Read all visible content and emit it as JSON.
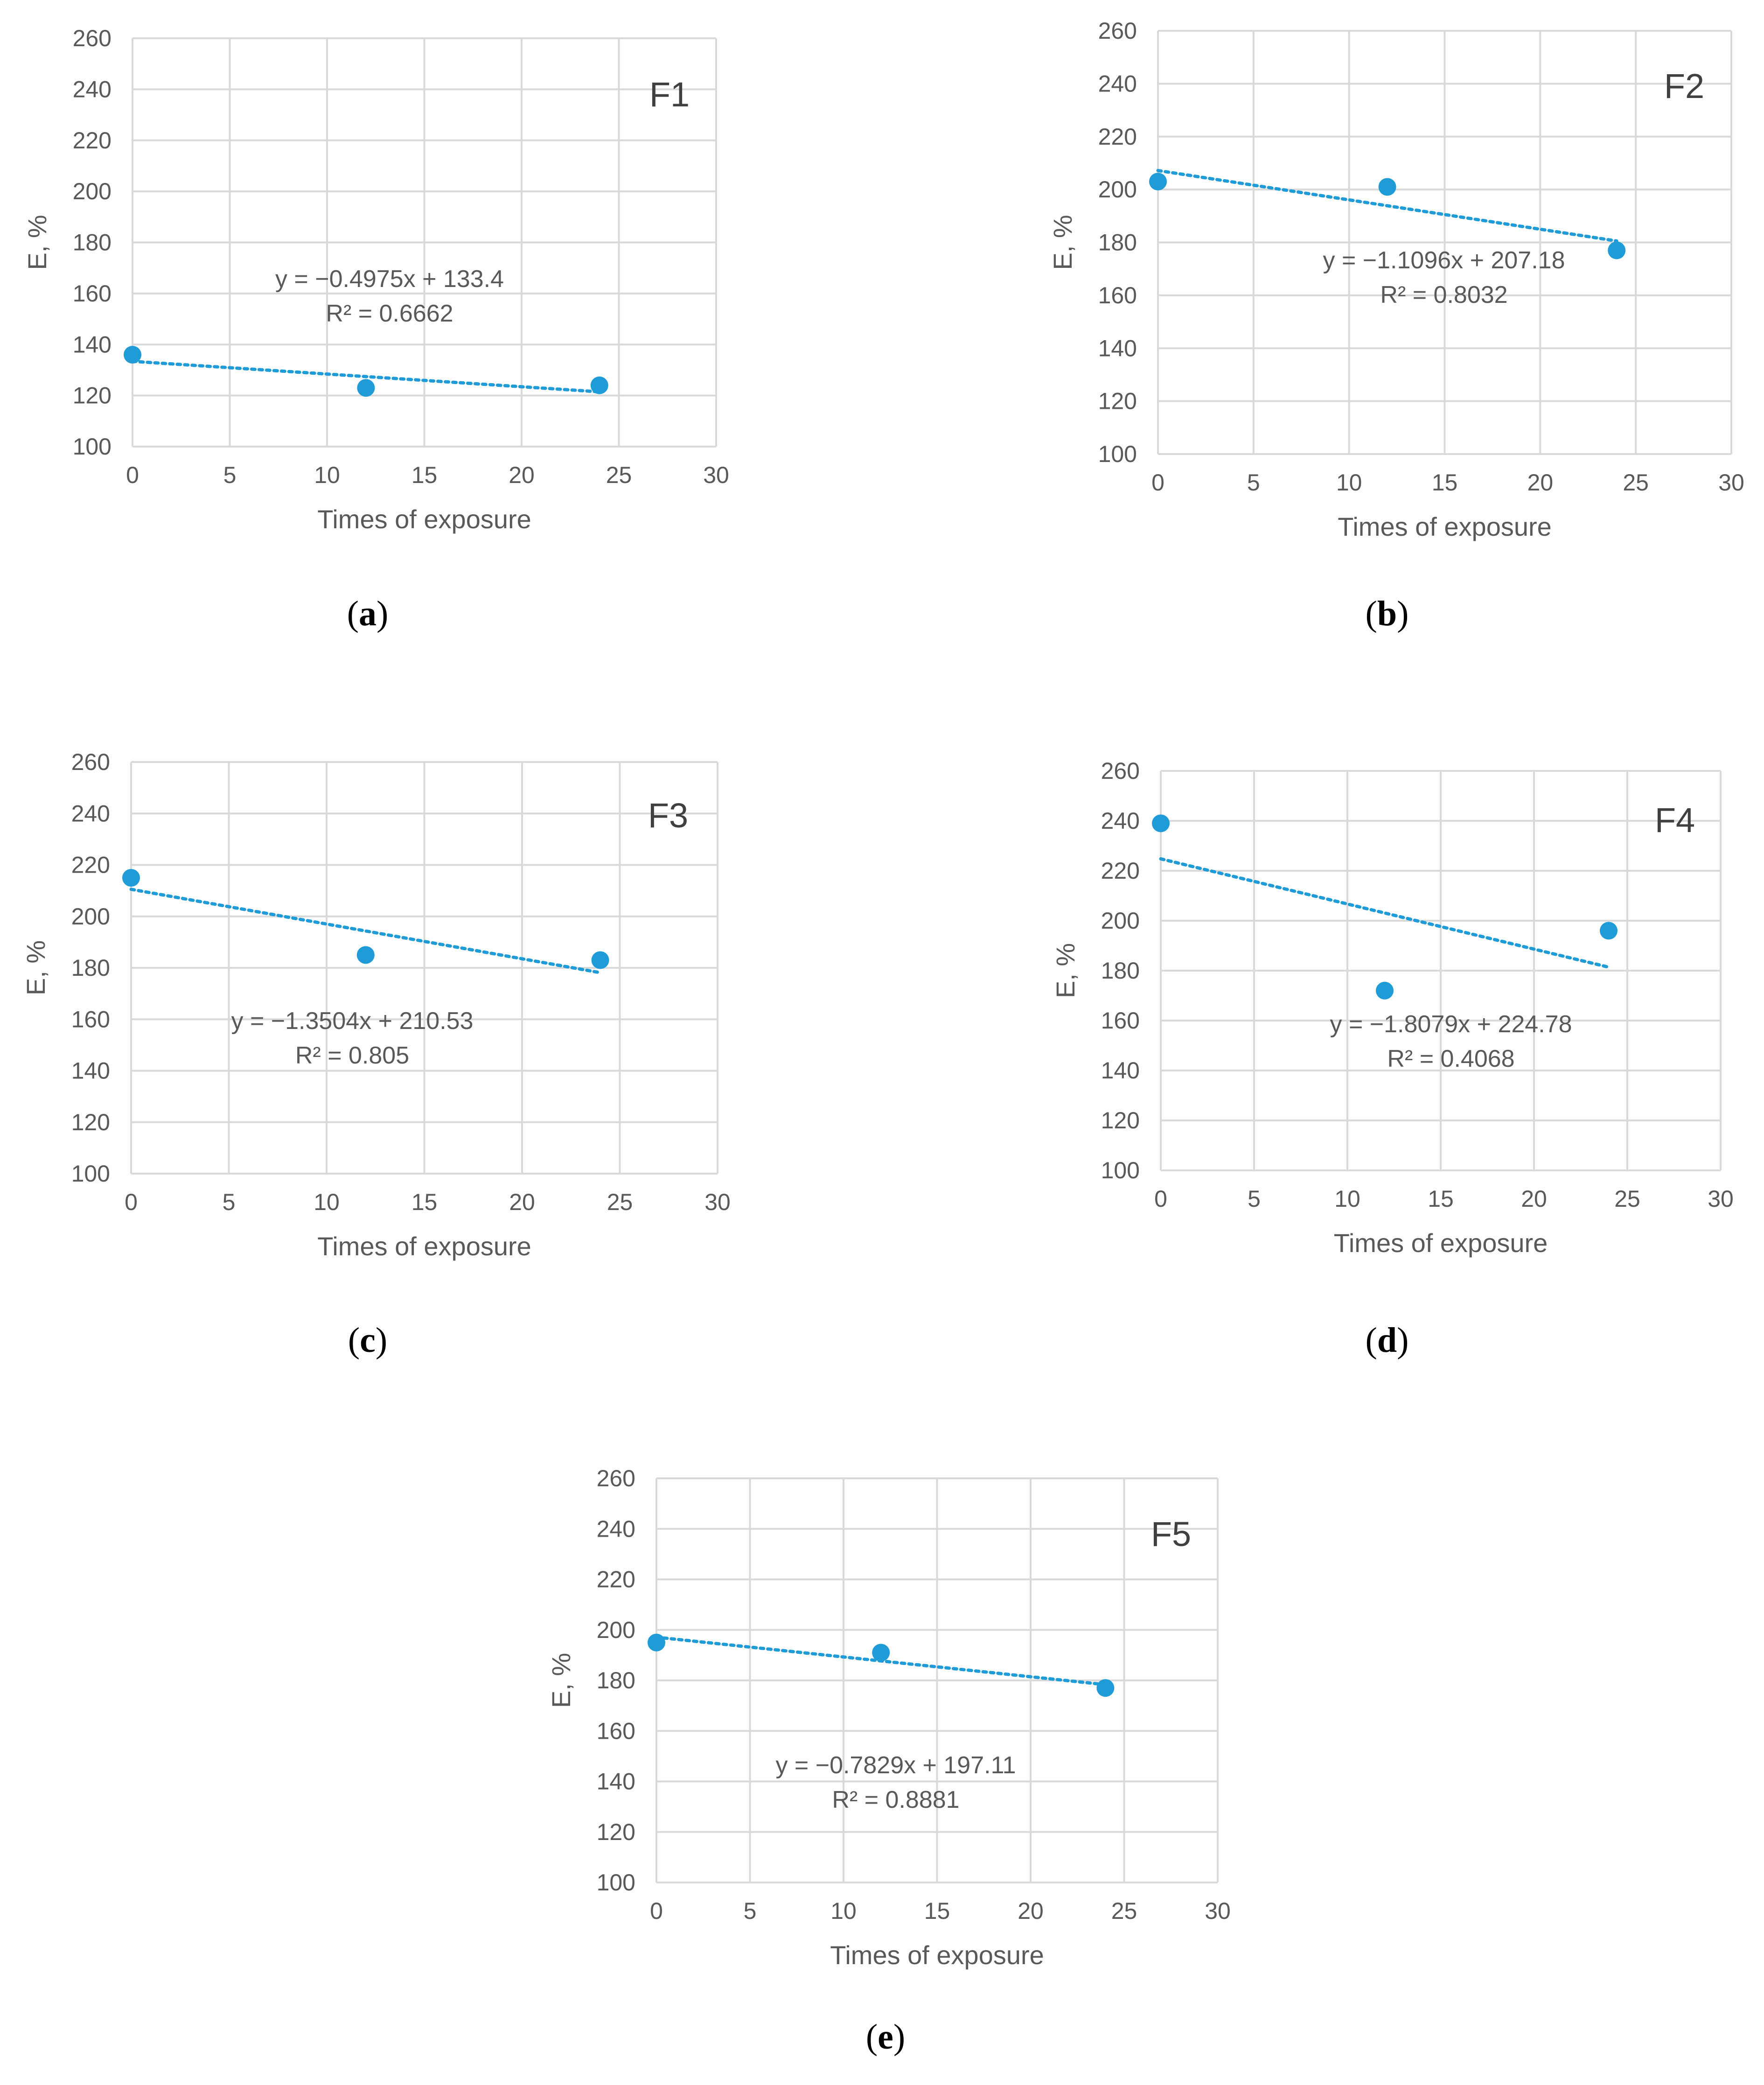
{
  "chart_data": [
    {
      "type": "scatter",
      "caption_letter": "a",
      "series_label": "F1",
      "xlabel": "Times of exposure",
      "ylabel": "E, %",
      "xlim": [
        0,
        30
      ],
      "ylim": [
        100,
        260
      ],
      "x_ticks": [
        0,
        5,
        10,
        15,
        20,
        25,
        30
      ],
      "y_ticks": [
        100,
        120,
        140,
        160,
        180,
        200,
        220,
        240,
        260
      ],
      "x": [
        0,
        12,
        24
      ],
      "y": [
        136,
        123,
        124
      ],
      "trendline": {
        "slope": -0.4975,
        "intercept": 133.4,
        "x_range": [
          0,
          24
        ]
      },
      "equation": "y = −0.4975x + 133.4",
      "r_squared": "R² = 0.6662"
    },
    {
      "type": "scatter",
      "caption_letter": "b",
      "series_label": "F2",
      "xlabel": "Times of exposure",
      "ylabel": "E, %",
      "xlim": [
        0,
        30
      ],
      "ylim": [
        100,
        260
      ],
      "x_ticks": [
        0,
        5,
        10,
        15,
        20,
        25,
        30
      ],
      "y_ticks": [
        100,
        120,
        140,
        160,
        180,
        200,
        220,
        240,
        260
      ],
      "x": [
        0,
        12,
        24
      ],
      "y": [
        203,
        201,
        177
      ],
      "trendline": {
        "slope": -1.1096,
        "intercept": 207.18,
        "x_range": [
          0,
          24
        ]
      },
      "equation": "y = −1.1096x + 207.18",
      "r_squared": "R² = 0.8032"
    },
    {
      "type": "scatter",
      "caption_letter": "c",
      "series_label": "F3",
      "xlabel": "Times of exposure",
      "ylabel": "E, %",
      "xlim": [
        0,
        30
      ],
      "ylim": [
        100,
        260
      ],
      "x_ticks": [
        0,
        5,
        10,
        15,
        20,
        25,
        30
      ],
      "y_ticks": [
        100,
        120,
        140,
        160,
        180,
        200,
        220,
        240,
        260
      ],
      "x": [
        0,
        12,
        24
      ],
      "y": [
        215,
        185,
        183
      ],
      "trendline": {
        "slope": -1.3504,
        "intercept": 210.53,
        "x_range": [
          0,
          24
        ]
      },
      "equation": "y = −1.3504x + 210.53",
      "r_squared": "R² = 0.805"
    },
    {
      "type": "scatter",
      "caption_letter": "d",
      "series_label": "F4",
      "xlabel": "Times of exposure",
      "ylabel": "E, %",
      "xlim": [
        0,
        30
      ],
      "ylim": [
        100,
        260
      ],
      "x_ticks": [
        0,
        5,
        10,
        15,
        20,
        25,
        30
      ],
      "y_ticks": [
        100,
        120,
        140,
        160,
        180,
        200,
        220,
        240,
        260
      ],
      "x": [
        0,
        12,
        24
      ],
      "y": [
        239,
        172,
        196
      ],
      "trendline": {
        "slope": -1.8079,
        "intercept": 224.78,
        "x_range": [
          0,
          24
        ]
      },
      "equation": "y = −1.8079x + 224.78",
      "r_squared": "R² = 0.4068"
    },
    {
      "type": "scatter",
      "caption_letter": "e",
      "series_label": "F5",
      "xlabel": "Times of exposure",
      "ylabel": "E, %",
      "xlim": [
        0,
        30
      ],
      "ylim": [
        100,
        260
      ],
      "x_ticks": [
        0,
        5,
        10,
        15,
        20,
        25,
        30
      ],
      "y_ticks": [
        100,
        120,
        140,
        160,
        180,
        200,
        220,
        240,
        260
      ],
      "x": [
        0,
        12,
        24
      ],
      "y": [
        195,
        191,
        177
      ],
      "trendline": {
        "slope": -0.7829,
        "intercept": 197.11,
        "x_range": [
          0,
          24
        ]
      },
      "equation": "y = −0.7829x + 197.11",
      "r_squared": "R² = 0.8881"
    }
  ],
  "colors": {
    "marker": "#1f9bd7",
    "trendline": "#1f9bd7",
    "grid": "#d9d9d9",
    "text": "#595959"
  }
}
